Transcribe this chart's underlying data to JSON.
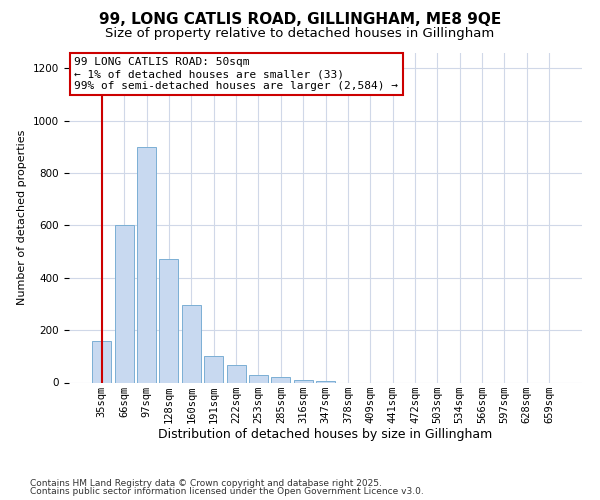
{
  "title_line1": "99, LONG CATLIS ROAD, GILLINGHAM, ME8 9QE",
  "title_line2": "Size of property relative to detached houses in Gillingham",
  "xlabel": "Distribution of detached houses by size in Gillingham",
  "ylabel": "Number of detached properties",
  "categories": [
    "35sqm",
    "66sqm",
    "97sqm",
    "128sqm",
    "160sqm",
    "191sqm",
    "222sqm",
    "253sqm",
    "285sqm",
    "316sqm",
    "347sqm",
    "378sqm",
    "409sqm",
    "441sqm",
    "472sqm",
    "503sqm",
    "534sqm",
    "566sqm",
    "597sqm",
    "628sqm",
    "659sqm"
  ],
  "values": [
    160,
    600,
    900,
    470,
    295,
    100,
    65,
    30,
    20,
    10,
    5,
    0,
    0,
    0,
    0,
    0,
    0,
    0,
    0,
    0,
    0
  ],
  "bar_color": "#c8d9f0",
  "bar_edge_color": "#7bafd4",
  "highlight_index": 0,
  "highlight_line_color": "#cc0000",
  "annotation_text": "99 LONG CATLIS ROAD: 50sqm\n← 1% of detached houses are smaller (33)\n99% of semi-detached houses are larger (2,584) →",
  "annotation_box_color": "#ffffff",
  "annotation_box_edge": "#cc0000",
  "ylim": [
    0,
    1260
  ],
  "yticks": [
    0,
    200,
    400,
    600,
    800,
    1000,
    1200
  ],
  "footer_line1": "Contains HM Land Registry data © Crown copyright and database right 2025.",
  "footer_line2": "Contains public sector information licensed under the Open Government Licence v3.0.",
  "bg_color": "#ffffff",
  "grid_color": "#d0d8e8",
  "title1_fontsize": 11,
  "title2_fontsize": 9.5,
  "xlabel_fontsize": 9,
  "ylabel_fontsize": 8,
  "tick_fontsize": 7.5,
  "footer_fontsize": 6.5,
  "ann_fontsize": 8
}
